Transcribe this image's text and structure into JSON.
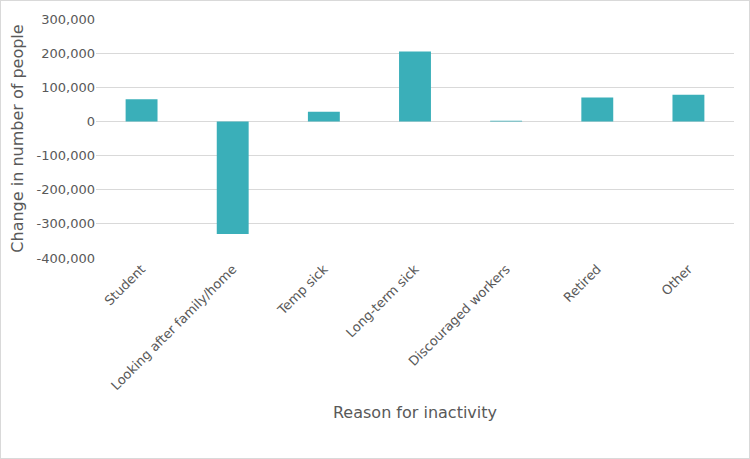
{
  "chart_data": {
    "type": "bar",
    "x_label": "Reason for inactivity",
    "y_label": "Change in number of people",
    "categories": [
      "Student",
      "Looking after family/home",
      "Temp sick",
      "Long-term sick",
      "Discouraged workers",
      "Retired",
      "Other"
    ],
    "values": [
      65000,
      -330000,
      28000,
      205000,
      2000,
      70000,
      78000
    ],
    "color": "#3aafb9",
    "ylim": [
      -400000,
      300000
    ],
    "yticks": [
      {
        "value": -400000,
        "label": "-400,000"
      },
      {
        "value": -300000,
        "label": "-300,000"
      },
      {
        "value": -200000,
        "label": "-200,000"
      },
      {
        "value": -100000,
        "label": "-100,000"
      },
      {
        "value": 0,
        "label": "0"
      },
      {
        "value": 100000,
        "label": "100,000"
      },
      {
        "value": 200000,
        "label": "200,000"
      },
      {
        "value": 300000,
        "label": "300,000"
      }
    ],
    "grid": true
  }
}
